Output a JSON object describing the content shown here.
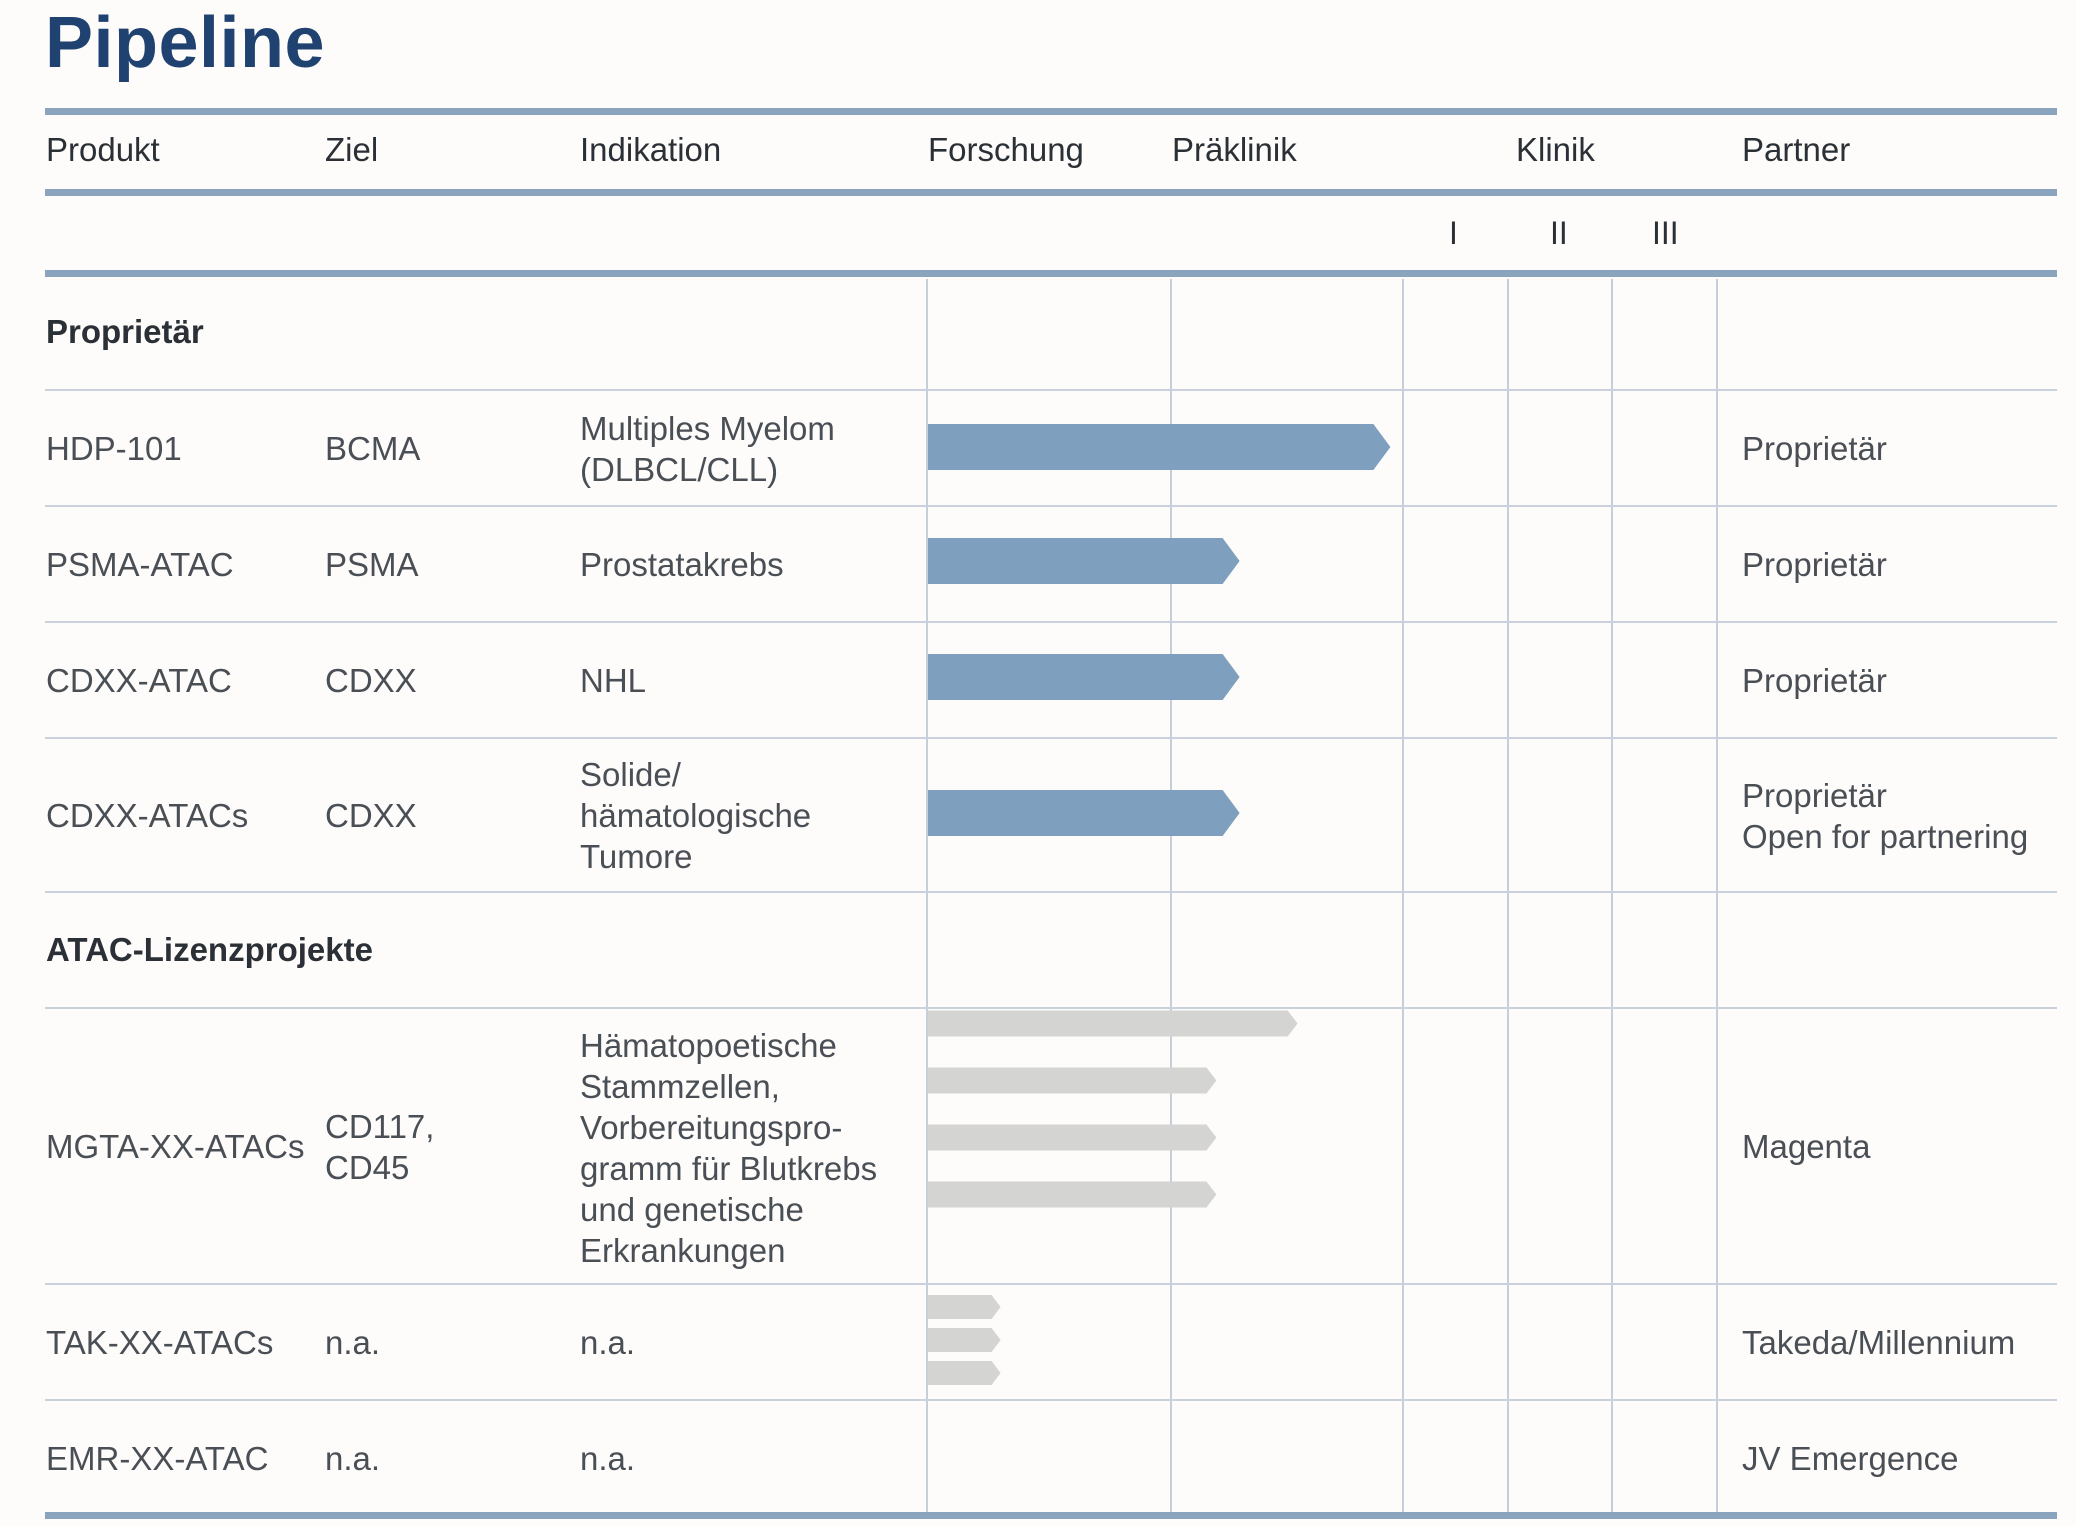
{
  "title": "Pipeline",
  "header": {
    "produkt": "Produkt",
    "ziel": "Ziel",
    "indikation": "Indikation",
    "forschung": "Forschung",
    "praeklinik": "Präklinik",
    "klinik": "Klinik",
    "partner": "Partner",
    "phase1": "I",
    "phase2": "II",
    "phase3": "III"
  },
  "sections": {
    "proprietary": "Proprietär",
    "licensing": "ATAC-Lizenzprojekte"
  },
  "rows": [
    {
      "produkt": "HDP-101",
      "ziel": "BCMA",
      "indikation": [
        "Multiples Myelom",
        "(DLBCL/CLL)"
      ],
      "partner": [
        "Proprietär"
      ]
    },
    {
      "produkt": "PSMA-ATAC",
      "ziel": "PSMA",
      "indikation": [
        "Prostatakrebs"
      ],
      "partner": [
        "Proprietär"
      ]
    },
    {
      "produkt": "CDXX-ATAC",
      "ziel": "CDXX",
      "indikation": [
        "NHL"
      ],
      "partner": [
        "Proprietär"
      ]
    },
    {
      "produkt": "CDXX-ATACs",
      "ziel": "CDXX",
      "indikation": [
        "Solide/",
        "hämatologische",
        "Tumore"
      ],
      "partner": [
        "Proprietär",
        "Open for partnering"
      ]
    },
    {
      "produkt": "MGTA-XX-ATACs",
      "ziel": [
        "CD117,",
        "CD45"
      ],
      "indikation": [
        "Hämatopoetische",
        "Stammzellen,",
        "Vorbereitungspro-",
        "gramm für Blutkrebs",
        "und genetische",
        "Erkrankungen"
      ],
      "partner": [
        "Magenta"
      ]
    },
    {
      "produkt": "TAK-XX-ATACs",
      "ziel": "n.a.",
      "indikation": [
        "n.a."
      ],
      "partner": [
        "Takeda/Millennium"
      ]
    },
    {
      "produkt": "EMR-XX-ATAC",
      "ziel": "n.a.",
      "indikation": [
        "n.a."
      ],
      "partner": [
        "JV Emergence"
      ]
    }
  ],
  "colors": {
    "title": "#1f4270",
    "proprietary_bar": "#7f9fbf",
    "licensed_bar": "#d4d4d2",
    "rule_thick": "#8aa4bd",
    "rule_thin": "#c9d2dc"
  },
  "chart_data": {
    "type": "bar",
    "stage_axis": [
      "Forschung",
      "Präklinik",
      "I",
      "II",
      "III"
    ],
    "stage_progress_note_units": "stages reached (1 = end of Forschung, 2 = end of Präklinik)",
    "bars": [
      {
        "produkt": "HDP-101",
        "group": "proprietary",
        "values": [
          1.95
        ]
      },
      {
        "produkt": "PSMA-ATAC",
        "group": "proprietary",
        "values": [
          1.3
        ]
      },
      {
        "produkt": "CDXX-ATAC",
        "group": "proprietary",
        "values": [
          1.3
        ]
      },
      {
        "produkt": "CDXX-ATACs",
        "group": "proprietary",
        "values": [
          1.3
        ]
      },
      {
        "produkt": "MGTA-XX-ATACs",
        "group": "licensed",
        "values": [
          1.55,
          1.2,
          1.2,
          1.2
        ]
      },
      {
        "produkt": "TAK-XX-ATACs",
        "group": "licensed",
        "values": [
          0.3,
          0.3,
          0.3
        ]
      },
      {
        "produkt": "EMR-XX-ATAC",
        "group": "licensed",
        "values": []
      }
    ]
  }
}
